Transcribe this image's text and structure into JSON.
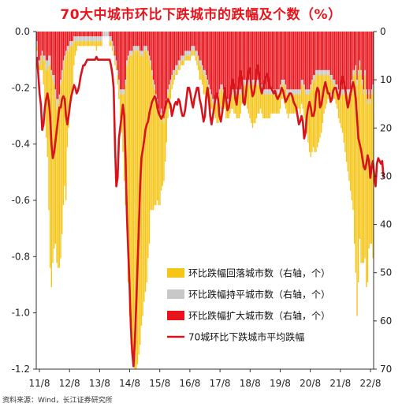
{
  "chart_data": {
    "type": "bar",
    "title": "70大中城市环比下跌城市的跌幅及个数（%）",
    "source": "资料来源：Wind，长江证券研究所",
    "x_ticks": [
      "11/8",
      "12/8",
      "13/8",
      "14/8",
      "15/8",
      "16/8",
      "17/8",
      "18/8",
      "19/8",
      "20/8",
      "21/8",
      "22/8"
    ],
    "y_left": {
      "min": -1.2,
      "max": 0.0,
      "ticks": [
        "0.0",
        "-0.2",
        "-0.4",
        "-0.6",
        "-0.8",
        "-1.0",
        "-1.2"
      ]
    },
    "y_right": {
      "min": 0,
      "max": 70,
      "inverted": true,
      "ticks": [
        "0",
        "10",
        "20",
        "30",
        "40",
        "50",
        "60",
        "70"
      ]
    },
    "grid": false,
    "legend_position": "lower-right-inside",
    "colors": {
      "rebound": "#f5c518",
      "flat": "#c8c8c8",
      "expand": "#e8141c",
      "line": "#d7141b"
    },
    "series": [
      {
        "name": "环比跌幅回落城市数（右轴，个）",
        "kind": "bar",
        "axis": "right",
        "values": [
          1,
          2,
          1,
          2,
          3,
          5,
          9,
          14,
          18,
          30,
          42,
          44,
          38,
          34,
          30,
          32,
          34,
          35,
          36,
          32,
          28,
          26,
          30,
          20,
          16,
          12,
          10,
          8,
          5,
          3,
          2,
          1,
          1,
          1,
          1,
          1,
          1,
          1,
          1,
          1,
          1,
          1,
          1,
          1,
          1,
          2,
          1,
          1,
          1,
          1,
          0,
          0,
          0,
          0,
          0,
          1,
          1,
          1,
          1,
          1,
          1,
          2,
          3,
          5,
          8,
          12,
          18,
          25,
          34,
          46,
          54,
          60,
          62,
          65,
          66,
          66,
          65,
          63,
          60,
          56,
          54,
          52,
          50,
          48,
          42,
          38,
          30,
          28,
          26,
          24,
          22,
          20,
          19,
          18,
          16,
          14,
          12,
          10,
          8,
          5,
          4,
          3,
          2,
          2,
          1,
          1,
          1,
          1,
          1,
          1,
          1,
          1,
          1,
          1,
          1,
          1,
          1,
          1,
          1,
          1,
          1,
          2,
          2,
          3,
          3,
          3,
          4,
          4,
          4,
          3,
          3,
          3,
          2,
          2,
          2,
          3,
          4,
          5,
          5,
          4,
          3,
          3,
          3,
          3,
          3,
          3,
          2,
          2,
          3,
          4,
          4,
          5,
          5,
          5,
          4,
          3,
          3,
          3,
          4,
          5,
          6,
          7,
          8,
          9,
          8,
          8,
          7,
          6,
          6,
          5,
          5,
          5,
          5,
          5,
          5,
          5,
          5,
          4,
          4,
          4,
          4,
          4,
          4,
          4,
          4,
          3,
          3,
          4,
          4,
          4,
          5,
          4,
          4,
          4,
          4,
          4,
          3,
          3,
          3,
          4,
          4,
          5,
          6,
          7,
          8,
          10,
          12,
          14,
          14,
          14,
          15,
          16,
          15,
          14,
          13,
          12,
          10,
          8,
          7,
          6,
          5,
          4,
          3,
          3,
          3,
          3,
          3,
          4,
          5,
          6,
          7,
          8,
          10,
          12,
          14,
          16,
          18,
          20,
          24,
          28,
          35,
          42,
          48,
          43,
          36,
          39,
          37,
          35,
          38,
          40,
          37,
          32,
          29,
          31,
          35
        ]
      },
      {
        "name": "环比跌幅持平城市数（右轴，个）",
        "kind": "bar",
        "axis": "right",
        "values": [
          1,
          1,
          1,
          1,
          1,
          1,
          1,
          2,
          2,
          2,
          2,
          1,
          1,
          2,
          2,
          2,
          1,
          1,
          1,
          2,
          2,
          1,
          1,
          1,
          1,
          1,
          1,
          1,
          1,
          1,
          1,
          1,
          1,
          1,
          1,
          1,
          1,
          1,
          1,
          1,
          1,
          1,
          1,
          1,
          1,
          1,
          1,
          1,
          1,
          1,
          1,
          1,
          1,
          1,
          1,
          1,
          1,
          1,
          1,
          1,
          1,
          1,
          1,
          1,
          1,
          1,
          1,
          1,
          1,
          1,
          1,
          1,
          1,
          1,
          1,
          1,
          1,
          1,
          1,
          1,
          1,
          1,
          1,
          1,
          1,
          1,
          1,
          1,
          1,
          1,
          1,
          1,
          1,
          1,
          1,
          1,
          1,
          1,
          1,
          1,
          1,
          1,
          1,
          1,
          1,
          1,
          1,
          1,
          1,
          1,
          1,
          1,
          1,
          1,
          1,
          1,
          1,
          1,
          1,
          1,
          1,
          1,
          1,
          1,
          1,
          1,
          1,
          1,
          1,
          1,
          1,
          1,
          1,
          1,
          1,
          1,
          1,
          1,
          1,
          1,
          1,
          1,
          1,
          1,
          1,
          1,
          1,
          1,
          1,
          1,
          1,
          1,
          1,
          1,
          1,
          1,
          1,
          1,
          1,
          1,
          1,
          1,
          1,
          1,
          1,
          1,
          1,
          1,
          1,
          1,
          1,
          1,
          1,
          1,
          1,
          1,
          1,
          1,
          1,
          1,
          1,
          1,
          1,
          1,
          1,
          1,
          1,
          1,
          1,
          1,
          1,
          1,
          1,
          1,
          1,
          1,
          1,
          1,
          1,
          1,
          1,
          1,
          1,
          1,
          1,
          1,
          1,
          1,
          1,
          1,
          1,
          1,
          1,
          1,
          1,
          1,
          1,
          1,
          1,
          1,
          1,
          1,
          1,
          1,
          1,
          1,
          1,
          1,
          1,
          1,
          1,
          1,
          1,
          1,
          1,
          1,
          1,
          1,
          1,
          1,
          1,
          1,
          1,
          1,
          1,
          1,
          1,
          1,
          1,
          1,
          1,
          1,
          1,
          1,
          1,
          1,
          1,
          1,
          1,
          1,
          2,
          2,
          2,
          2,
          2,
          2,
          2,
          2,
          2,
          2,
          2
        ]
      },
      {
        "name": "环比跌幅扩大城市数（右轴，个）",
        "kind": "bar",
        "axis": "right",
        "values": [
          2,
          6,
          6,
          5,
          4,
          5,
          5,
          6,
          6,
          5,
          5,
          8,
          9,
          9,
          12,
          14,
          14,
          13,
          10,
          8,
          6,
          5,
          4,
          3,
          3,
          2,
          2,
          2,
          1,
          1,
          1,
          1,
          1,
          1,
          1,
          1,
          1,
          1,
          1,
          1,
          1,
          1,
          1,
          1,
          1,
          1,
          1,
          1,
          1,
          1,
          0,
          0,
          0,
          0,
          0,
          1,
          1,
          2,
          3,
          5,
          6,
          8,
          10,
          12,
          12,
          12,
          12,
          10,
          6,
          5,
          4,
          4,
          4,
          3,
          3,
          3,
          3,
          3,
          4,
          4,
          4,
          3,
          3,
          3,
          4,
          5,
          6,
          8,
          10,
          11,
          13,
          14,
          16,
          17,
          16,
          17,
          18,
          16,
          14,
          12,
          11,
          10,
          9,
          8,
          8,
          7,
          7,
          6,
          6,
          5,
          5,
          5,
          4,
          4,
          4,
          4,
          4,
          3,
          3,
          3,
          4,
          4,
          5,
          6,
          6,
          7,
          8,
          8,
          9,
          10,
          11,
          12,
          13,
          14,
          14,
          14,
          14,
          13,
          12,
          11,
          11,
          12,
          12,
          14,
          14,
          14,
          14,
          13,
          12,
          12,
          12,
          12,
          12,
          12,
          12,
          11,
          10,
          10,
          10,
          10,
          10,
          10,
          10,
          10,
          10,
          10,
          10,
          10,
          10,
          10,
          11,
          12,
          12,
          12,
          12,
          12,
          12,
          12,
          12,
          12,
          12,
          12,
          12,
          12,
          11,
          10,
          10,
          10,
          11,
          12,
          12,
          12,
          12,
          12,
          12,
          12,
          12,
          12,
          12,
          12,
          10,
          10,
          11,
          12,
          12,
          12,
          12,
          11,
          10,
          9,
          9,
          8,
          8,
          8,
          8,
          8,
          8,
          8,
          8,
          8,
          8,
          8,
          9,
          9,
          10,
          10,
          11,
          11,
          12,
          12,
          12,
          12,
          12,
          12,
          12,
          12,
          12,
          12,
          10,
          8,
          8,
          7,
          10,
          8,
          6,
          8,
          10,
          12,
          8,
          12,
          14,
          12,
          14,
          12,
          11,
          9
        ]
      },
      {
        "name": "70城环比下跌城市平均跌幅",
        "kind": "line",
        "axis": "left",
        "values": [
          -0.09,
          -0.15,
          -0.22,
          -0.26,
          -0.35,
          -0.33,
          -0.27,
          -0.24,
          -0.22,
          -0.25,
          -0.3,
          -0.4,
          -0.45,
          -0.43,
          -0.39,
          -0.35,
          -0.31,
          -0.27,
          -0.27,
          -0.24,
          -0.23,
          -0.24,
          -0.3,
          -0.33,
          -0.3,
          -0.26,
          -0.23,
          -0.21,
          -0.19,
          -0.2,
          -0.22,
          -0.21,
          -0.19,
          -0.16,
          -0.14,
          -0.12,
          -0.12,
          -0.11,
          -0.1,
          -0.1,
          -0.1,
          -0.1,
          -0.1,
          -0.1,
          -0.1,
          -0.09,
          -0.1,
          -0.1,
          -0.1,
          -0.1,
          -0.1,
          -0.1,
          -0.1,
          -0.1,
          -0.1,
          -0.1,
          -0.12,
          -0.15,
          -0.2,
          -0.4,
          -0.55,
          -0.52,
          -0.38,
          -0.34,
          -0.3,
          -0.26,
          -0.3,
          -0.45,
          -0.65,
          -0.78,
          -0.9,
          -1.05,
          -1.14,
          -1.19,
          -1.1,
          -0.98,
          -0.84,
          -0.7,
          -0.55,
          -0.45,
          -0.42,
          -0.39,
          -0.35,
          -0.33,
          -0.32,
          -0.29,
          -0.27,
          -0.25,
          -0.24,
          -0.23,
          -0.24,
          -0.27,
          -0.29,
          -0.3,
          -0.31,
          -0.3,
          -0.29,
          -0.27,
          -0.25,
          -0.24,
          -0.25,
          -0.26,
          -0.3,
          -0.28,
          -0.26,
          -0.25,
          -0.26,
          -0.24,
          -0.25,
          -0.28,
          -0.3,
          -0.3,
          -0.28,
          -0.24,
          -0.2,
          -0.2,
          -0.22,
          -0.25,
          -0.27,
          -0.24,
          -0.22,
          -0.2,
          -0.2,
          -0.24,
          -0.26,
          -0.29,
          -0.32,
          -0.3,
          -0.23,
          -0.2,
          -0.24,
          -0.3,
          -0.33,
          -0.3,
          -0.27,
          -0.23,
          -0.22,
          -0.24,
          -0.3,
          -0.32,
          -0.29,
          -0.25,
          -0.2,
          -0.24,
          -0.28,
          -0.27,
          -0.24,
          -0.2,
          -0.17,
          -0.19,
          -0.24,
          -0.26,
          -0.21,
          -0.17,
          -0.14,
          -0.17,
          -0.25,
          -0.26,
          -0.22,
          -0.17,
          -0.14,
          -0.13,
          -0.2,
          -0.23,
          -0.22,
          -0.19,
          -0.14,
          -0.12,
          -0.15,
          -0.2,
          -0.22,
          -0.2,
          -0.18,
          -0.16,
          -0.15,
          -0.17,
          -0.2,
          -0.2,
          -0.21,
          -0.22,
          -0.21,
          -0.23,
          -0.24,
          -0.23,
          -0.22,
          -0.2,
          -0.21,
          -0.23,
          -0.25,
          -0.24,
          -0.23,
          -0.22,
          -0.22,
          -0.23,
          -0.25,
          -0.26,
          -0.27,
          -0.3,
          -0.33,
          -0.32,
          -0.3,
          -0.32,
          -0.38,
          -0.36,
          -0.3,
          -0.27,
          -0.25,
          -0.27,
          -0.3,
          -0.3,
          -0.28,
          -0.22,
          -0.2,
          -0.21,
          -0.27,
          -0.26,
          -0.23,
          -0.2,
          -0.18,
          -0.2,
          -0.22,
          -0.22,
          -0.25,
          -0.24,
          -0.21,
          -0.2,
          -0.2,
          -0.22,
          -0.24,
          -0.22,
          -0.18,
          -0.16,
          -0.18,
          -0.2,
          -0.24,
          -0.27,
          -0.25,
          -0.22,
          -0.2,
          -0.18,
          -0.2,
          -0.24,
          -0.31,
          -0.38,
          -0.4,
          -0.42,
          -0.45,
          -0.48,
          -0.49,
          -0.47,
          -0.44,
          -0.46,
          -0.52,
          -0.48,
          -0.46,
          -0.51,
          -0.55,
          -0.47,
          -0.45,
          -0.46,
          -0.47,
          -0.46,
          -0.52
        ]
      }
    ]
  }
}
